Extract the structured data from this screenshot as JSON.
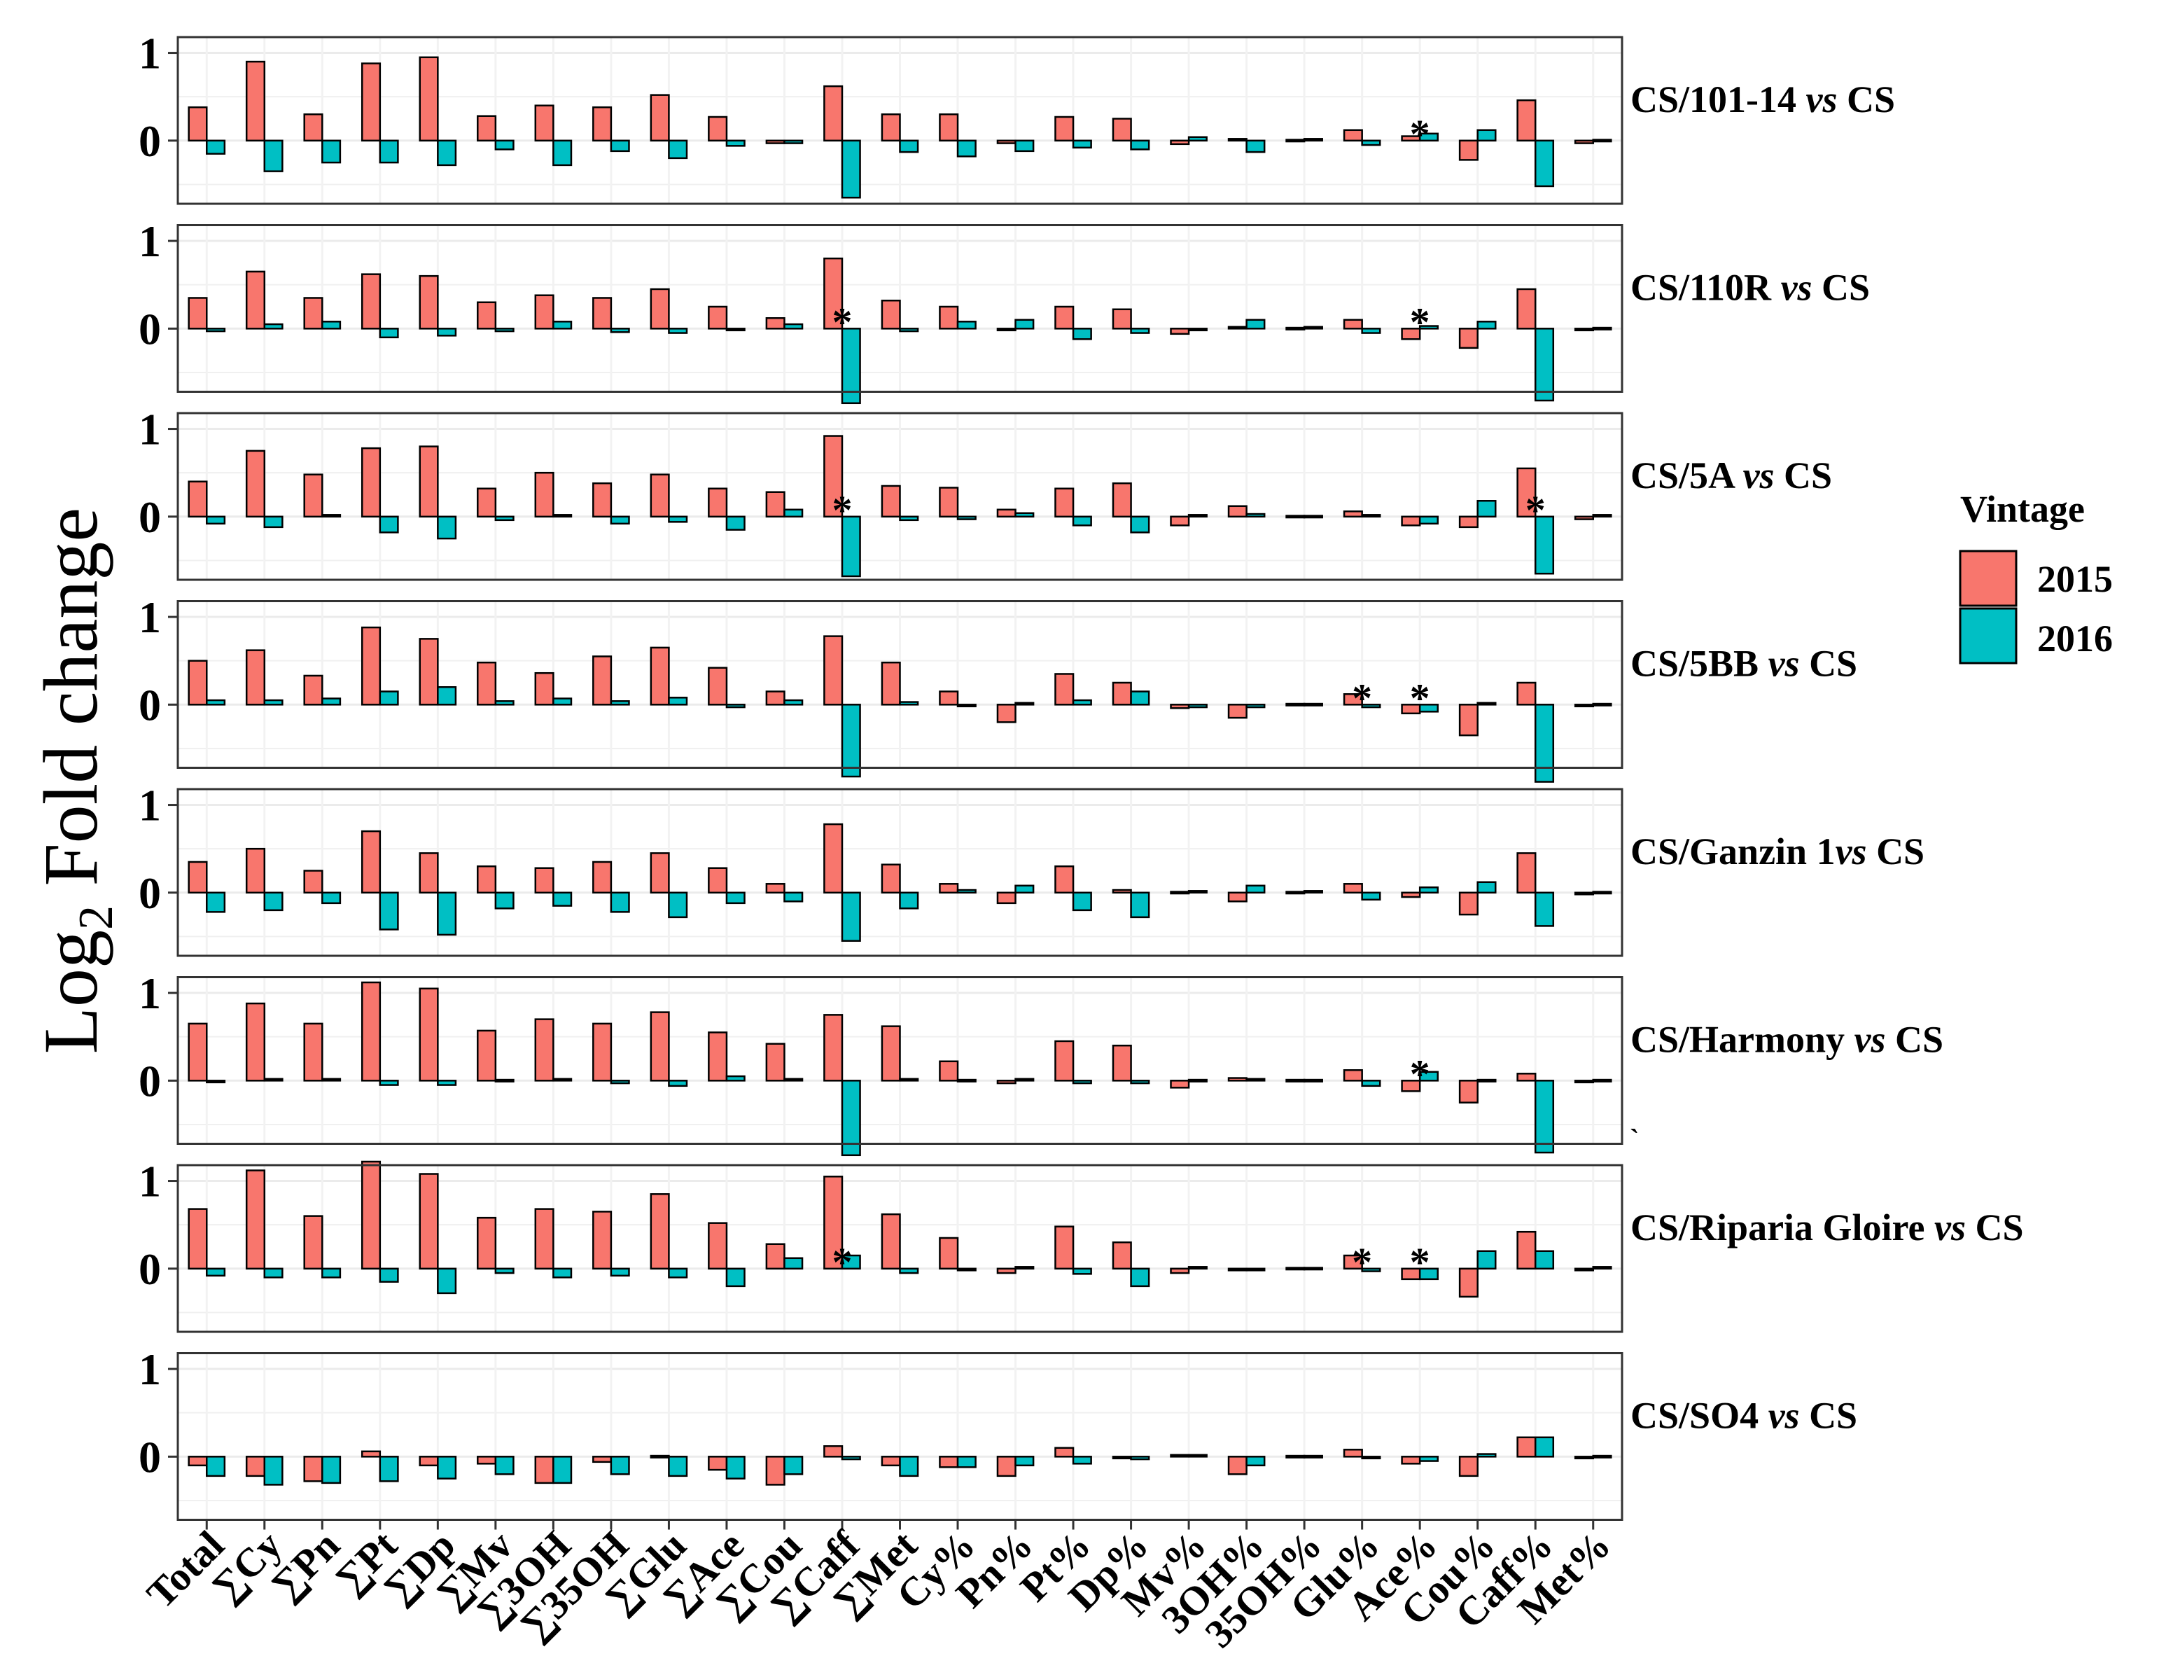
{
  "chart_data": {
    "type": "bar",
    "ylabel_main": "Log",
    "ylabel_sub": "2",
    "ylabel_rest": " Fold change",
    "ylim": [
      -0.72,
      1.18
    ],
    "yticks": [
      "0",
      "1"
    ],
    "legend_title": "Vintage",
    "categories": [
      "Total",
      "∑Cy",
      "∑Pn",
      "∑Pt",
      "∑Dp",
      "∑Mv",
      "∑3OH",
      "∑35OH",
      "∑Glu",
      "∑Ace",
      "∑Cou",
      "∑Caff",
      "∑Met",
      "Cy%",
      "Pn%",
      "Pt%",
      "Dp%",
      "Mv%",
      "3OH%",
      "35OH%",
      "Glu%",
      "Ace%",
      "Cou%",
      "Caff%",
      "Met%"
    ],
    "series": [
      {
        "name": "2015",
        "color": "#F8766D"
      },
      {
        "name": "2016",
        "color": "#00BFC4"
      }
    ],
    "panels": [
      {
        "prefix": "CS/101-14 ",
        "italic": "vs",
        "suffix": " CS",
        "v2015": [
          0.38,
          0.9,
          0.3,
          0.88,
          0.95,
          0.28,
          0.4,
          0.38,
          0.52,
          0.27,
          -0.03,
          0.62,
          0.3,
          0.3,
          -0.03,
          0.27,
          0.25,
          -0.04,
          0.02,
          0.01,
          0.12,
          0.05,
          -0.22,
          0.46,
          -0.03
        ],
        "v2016": [
          -0.15,
          -0.35,
          -0.25,
          -0.25,
          -0.28,
          -0.1,
          -0.28,
          -0.12,
          -0.2,
          -0.06,
          -0.03,
          -0.65,
          -0.13,
          -0.18,
          -0.12,
          -0.08,
          -0.1,
          0.04,
          -0.13,
          0.02,
          -0.05,
          0.08,
          0.12,
          -0.52,
          0.01
        ],
        "stars": [
          {
            "cat": 21,
            "text": "*"
          }
        ]
      },
      {
        "prefix": "CS/110R ",
        "italic": "vs",
        "suffix": " CS",
        "v2015": [
          0.35,
          0.65,
          0.35,
          0.62,
          0.6,
          0.3,
          0.38,
          0.35,
          0.45,
          0.25,
          0.12,
          0.8,
          0.32,
          0.25,
          -0.02,
          0.25,
          0.22,
          -0.06,
          0.02,
          0.01,
          0.1,
          -0.12,
          -0.22,
          0.45,
          -0.02
        ],
        "v2016": [
          -0.03,
          0.05,
          0.08,
          -0.1,
          -0.08,
          -0.03,
          0.08,
          -0.04,
          -0.05,
          -0.02,
          0.05,
          -0.85,
          -0.03,
          0.08,
          0.1,
          -0.12,
          -0.05,
          -0.02,
          0.1,
          0.02,
          -0.05,
          0.03,
          0.08,
          -0.82,
          0.01
        ],
        "stars": [
          {
            "cat": 11,
            "text": "*"
          },
          {
            "cat": 21,
            "text": "*"
          }
        ]
      },
      {
        "prefix": "CS/5A ",
        "italic": "vs",
        "suffix": " CS",
        "v2015": [
          0.4,
          0.75,
          0.48,
          0.78,
          0.8,
          0.32,
          0.5,
          0.38,
          0.48,
          0.32,
          0.28,
          0.92,
          0.35,
          0.33,
          0.08,
          0.32,
          0.38,
          -0.1,
          0.12,
          0.01,
          0.06,
          -0.1,
          -0.12,
          0.55,
          -0.03
        ],
        "v2016": [
          -0.08,
          -0.12,
          0.02,
          -0.18,
          -0.25,
          -0.04,
          0.02,
          -0.08,
          -0.06,
          -0.15,
          0.08,
          -0.68,
          -0.04,
          -0.03,
          0.04,
          -0.1,
          -0.18,
          0.02,
          0.03,
          0.01,
          0.02,
          -0.08,
          0.18,
          -0.65,
          0.02
        ],
        "stars": [
          {
            "cat": 11,
            "text": "*"
          },
          {
            "cat": 23,
            "text": "*"
          }
        ]
      },
      {
        "prefix": "CS/5BB ",
        "italic": "vs",
        "suffix": " CS",
        "v2015": [
          0.5,
          0.62,
          0.33,
          0.88,
          0.75,
          0.48,
          0.36,
          0.55,
          0.65,
          0.42,
          0.15,
          0.78,
          0.48,
          0.15,
          -0.2,
          0.35,
          0.25,
          -0.04,
          -0.15,
          0.01,
          0.12,
          -0.1,
          -0.35,
          0.25,
          -0.02
        ],
        "v2016": [
          0.05,
          0.05,
          0.07,
          0.15,
          0.2,
          0.04,
          0.07,
          0.04,
          0.08,
          -0.03,
          0.05,
          -0.82,
          0.03,
          -0.02,
          0.02,
          0.05,
          0.15,
          -0.03,
          -0.03,
          0.01,
          -0.03,
          -0.08,
          0.02,
          -0.88,
          0.01
        ],
        "stars": [
          {
            "cat": 20,
            "text": "*"
          },
          {
            "cat": 21,
            "text": "*"
          }
        ]
      },
      {
        "prefix": "CS/Ganzin 1",
        "italic": "vs",
        "suffix": " CS",
        "v2015": [
          0.35,
          0.5,
          0.25,
          0.7,
          0.45,
          0.3,
          0.28,
          0.35,
          0.45,
          0.28,
          0.1,
          0.78,
          0.32,
          0.1,
          -0.12,
          0.3,
          0.03,
          0.01,
          -0.1,
          0.01,
          0.1,
          -0.05,
          -0.25,
          0.45,
          -0.02
        ],
        "v2016": [
          -0.22,
          -0.2,
          -0.12,
          -0.42,
          -0.48,
          -0.18,
          -0.15,
          -0.22,
          -0.28,
          -0.12,
          -0.1,
          -0.55,
          -0.18,
          0.03,
          0.08,
          -0.2,
          -0.28,
          0.02,
          0.08,
          0.02,
          -0.08,
          0.06,
          0.12,
          -0.38,
          0.01
        ],
        "stars": []
      },
      {
        "prefix": "CS/Harmony ",
        "italic": "vs",
        "suffix": " CS",
        "v2015": [
          0.65,
          0.88,
          0.65,
          1.12,
          1.05,
          0.57,
          0.7,
          0.65,
          0.78,
          0.55,
          0.42,
          0.75,
          0.62,
          0.22,
          -0.03,
          0.45,
          0.4,
          -0.08,
          0.03,
          0.01,
          0.12,
          -0.12,
          -0.25,
          0.08,
          -0.02
        ],
        "v2016": [
          -0.02,
          0.02,
          0.02,
          -0.05,
          -0.05,
          0.01,
          0.02,
          -0.03,
          -0.06,
          0.05,
          0.02,
          -0.85,
          0.02,
          0.01,
          0.02,
          -0.03,
          -0.03,
          0.01,
          0.02,
          0.01,
          -0.06,
          0.1,
          0.01,
          -0.82,
          0.01
        ],
        "stars": [
          {
            "cat": 21,
            "text": "*"
          }
        ]
      },
      {
        "prefix": "CS/Riparia Gloire ",
        "italic": "vs",
        "suffix": " CS",
        "v2015": [
          0.68,
          1.12,
          0.6,
          1.22,
          1.08,
          0.58,
          0.68,
          0.65,
          0.85,
          0.52,
          0.28,
          1.05,
          0.62,
          0.35,
          -0.05,
          0.48,
          0.3,
          -0.05,
          -0.02,
          0.01,
          0.15,
          -0.12,
          -0.32,
          0.42,
          -0.02
        ],
        "v2016": [
          -0.08,
          -0.1,
          -0.1,
          -0.15,
          -0.28,
          -0.05,
          -0.1,
          -0.08,
          -0.1,
          -0.2,
          0.12,
          0.15,
          -0.05,
          -0.01,
          0.02,
          -0.06,
          -0.2,
          0.02,
          -0.01,
          0.01,
          -0.03,
          -0.12,
          0.2,
          0.2,
          0.02
        ],
        "stars": [
          {
            "cat": 11,
            "text": "*"
          },
          {
            "cat": 20,
            "text": "*"
          },
          {
            "cat": 21,
            "text": "*"
          }
        ]
      },
      {
        "prefix": "CS/SO4 ",
        "italic": "vs",
        "suffix": " CS",
        "v2015": [
          -0.1,
          -0.22,
          -0.28,
          0.06,
          -0.1,
          -0.08,
          -0.3,
          -0.06,
          0.01,
          -0.15,
          -0.32,
          0.12,
          -0.1,
          -0.12,
          -0.22,
          0.1,
          -0.02,
          0.02,
          -0.2,
          0.01,
          0.08,
          -0.08,
          -0.22,
          0.22,
          -0.02
        ],
        "v2016": [
          -0.22,
          -0.32,
          -0.3,
          -0.28,
          -0.25,
          -0.2,
          -0.3,
          -0.2,
          -0.22,
          -0.25,
          -0.2,
          -0.03,
          -0.22,
          -0.12,
          -0.1,
          -0.08,
          -0.03,
          0.02,
          -0.1,
          0.01,
          -0.02,
          -0.05,
          0.03,
          0.22,
          0.01
        ],
        "stars": []
      }
    ],
    "extra_mark": "`"
  }
}
